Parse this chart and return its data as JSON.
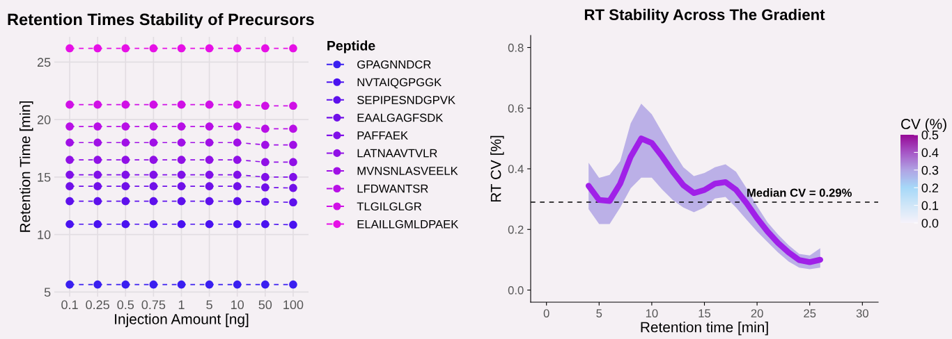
{
  "chart_data": [
    {
      "type": "line",
      "title": "Retention Times Stability of Precursors",
      "xlabel": "Injection Amount [ng]",
      "ylabel": "Retention Time [min]",
      "legend_title": "Peptide",
      "categories": [
        "0.1",
        "0.25",
        "0.5",
        "0.75",
        "1",
        "5",
        "10",
        "50",
        "100"
      ],
      "ylim": [
        4.6,
        27.2
      ],
      "yticks": [
        5,
        10,
        15,
        20,
        25
      ],
      "grid": true,
      "legend": "right",
      "marker": "circle",
      "line_style": "dashed",
      "series": [
        {
          "name": "GPAGNNDCR",
          "color": "#3a1ff0",
          "values": [
            5.65,
            5.65,
            5.65,
            5.65,
            5.65,
            5.65,
            5.65,
            5.65,
            5.65
          ]
        },
        {
          "name": "NVTAIQGPGGK",
          "color": "#4a12f0",
          "values": [
            10.9,
            10.9,
            10.9,
            10.9,
            10.9,
            10.9,
            10.9,
            10.9,
            10.85
          ]
        },
        {
          "name": "SEPIPESNDGPVK",
          "color": "#5e10ec",
          "values": [
            12.9,
            12.9,
            12.9,
            12.9,
            12.9,
            12.9,
            12.9,
            12.85,
            12.8
          ]
        },
        {
          "name": "EAALGAGFSDK",
          "color": "#7010e8",
          "values": [
            14.2,
            14.2,
            14.2,
            14.2,
            14.2,
            14.2,
            14.2,
            14.1,
            14.05
          ]
        },
        {
          "name": "PAFFAEK",
          "color": "#8010e8",
          "values": [
            15.2,
            15.2,
            15.2,
            15.2,
            15.2,
            15.2,
            15.2,
            15.0,
            15.0
          ]
        },
        {
          "name": "LATNAAVTVLR",
          "color": "#9010e6",
          "values": [
            16.5,
            16.5,
            16.5,
            16.5,
            16.5,
            16.5,
            16.5,
            16.3,
            16.3
          ]
        },
        {
          "name": "MVNSNLASVEELK",
          "color": "#a010e6",
          "values": [
            18.0,
            18.0,
            18.0,
            18.0,
            18.0,
            18.0,
            18.0,
            17.8,
            17.8
          ]
        },
        {
          "name": "LFDWANTSR",
          "color": "#b810e6",
          "values": [
            19.4,
            19.4,
            19.4,
            19.4,
            19.4,
            19.4,
            19.4,
            19.2,
            19.2
          ]
        },
        {
          "name": "TLGILGLGR",
          "color": "#d010e6",
          "values": [
            21.3,
            21.3,
            21.3,
            21.3,
            21.3,
            21.3,
            21.3,
            21.2,
            21.2
          ]
        },
        {
          "name": "ELAILLGMLDPAEK",
          "color": "#e610e6",
          "values": [
            26.2,
            26.2,
            26.2,
            26.2,
            26.2,
            26.2,
            26.2,
            26.2,
            26.2
          ]
        }
      ]
    },
    {
      "type": "line",
      "title": "RT Stability Across The Gradient",
      "xlabel": "Retention time [min]",
      "ylabel": "RT CV [%]",
      "clabel": "CV (%)",
      "xlim": [
        -1.5,
        31.5
      ],
      "xticks": [
        0,
        5,
        10,
        15,
        20,
        25,
        30
      ],
      "ylim": [
        -0.04,
        0.84
      ],
      "yticks": [
        {
          "value": 0,
          "label": "0.0"
        },
        {
          "value": 0.2,
          "label": "0.2"
        },
        {
          "value": 0.4,
          "label": "0.4"
        },
        {
          "value": 0.6,
          "label": "0.6"
        },
        {
          "value": 0.8,
          "label": "0.8"
        }
      ],
      "clim": [
        0,
        0.5
      ],
      "cticks": [
        {
          "value": 0,
          "label": "0.0"
        },
        0.1,
        0.2,
        0.3,
        0.4,
        0.5
      ],
      "grid": false,
      "ref_lines": [
        {
          "axis": "y",
          "value": 0.29,
          "label": "Median CV = 0.29%",
          "color": "#000000",
          "line_style": "dashed"
        }
      ],
      "series": [
        {
          "x": [
            4,
            5,
            6,
            7,
            8,
            9,
            10,
            11,
            12,
            13,
            14,
            15,
            16,
            17,
            18,
            19,
            20,
            21,
            22,
            23,
            24,
            25,
            26
          ],
          "values": [
            0.344,
            0.297,
            0.294,
            0.351,
            0.44,
            0.5,
            0.485,
            0.44,
            0.39,
            0.346,
            0.32,
            0.33,
            0.351,
            0.356,
            0.331,
            0.287,
            0.237,
            0.193,
            0.155,
            0.124,
            0.099,
            0.092,
            0.1
          ],
          "lower": [
            0.267,
            0.218,
            0.218,
            0.272,
            0.336,
            0.371,
            0.371,
            0.331,
            0.297,
            0.272,
            0.257,
            0.272,
            0.302,
            0.307,
            0.272,
            0.232,
            0.193,
            0.158,
            0.124,
            0.094,
            0.074,
            0.069,
            0.074
          ],
          "upper": [
            0.42,
            0.37,
            0.38,
            0.425,
            0.55,
            0.615,
            0.58,
            0.52,
            0.46,
            0.405,
            0.376,
            0.386,
            0.405,
            0.415,
            0.39,
            0.336,
            0.277,
            0.223,
            0.183,
            0.148,
            0.119,
            0.114,
            0.138
          ],
          "color": "#a020e8"
        }
      ]
    }
  ]
}
